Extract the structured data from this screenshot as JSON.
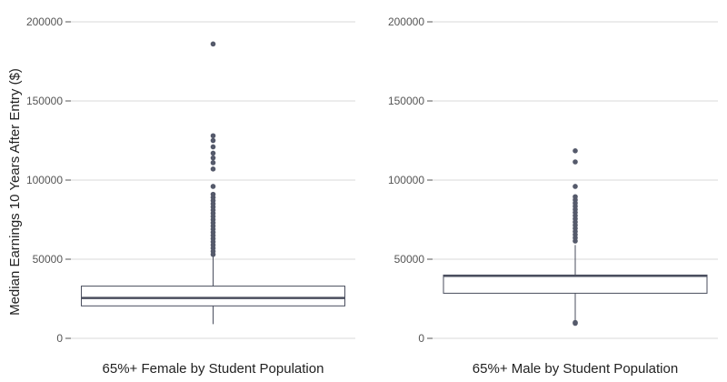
{
  "chart_data": {
    "type": "box",
    "ylabel": "Median Earnings 10 Years After Entry ($)",
    "ylim": [
      0,
      200000
    ],
    "yticks": [
      0,
      50000,
      100000,
      150000,
      200000
    ],
    "ytick_labels": [
      "0",
      "50000",
      "100000",
      "150000",
      "200000"
    ],
    "grid": true,
    "colors": {
      "box": "#4a4e5e",
      "outlier": "#555a6b",
      "grid": "#d9d9d9"
    },
    "panels": [
      {
        "label": "65%+ Female by Student Population",
        "whisker_low": 9000,
        "q1": 20500,
        "median": 25500,
        "q3": 33000,
        "whisker_high": 51500,
        "outliers": [
          186000,
          128000,
          125000,
          121000,
          117000,
          114000,
          111000,
          107000,
          96000,
          91000,
          89000,
          87000,
          85000,
          83000,
          81000,
          79000,
          77000,
          75000,
          73000,
          71000,
          69000,
          67000,
          65000,
          63000,
          61000,
          59000,
          57000,
          55000,
          53000
        ]
      },
      {
        "label": "65%+ Male by Student Population",
        "whisker_low": 11000,
        "q1": 28500,
        "median": 39500,
        "q3": 40000,
        "whisker_high": 59000,
        "outliers": [
          118500,
          111500,
          96000,
          89500,
          87500,
          85500,
          83500,
          81500,
          79500,
          77500,
          75500,
          73500,
          71500,
          69500,
          67500,
          65500,
          63500,
          61500,
          10000,
          9500
        ]
      }
    ]
  }
}
